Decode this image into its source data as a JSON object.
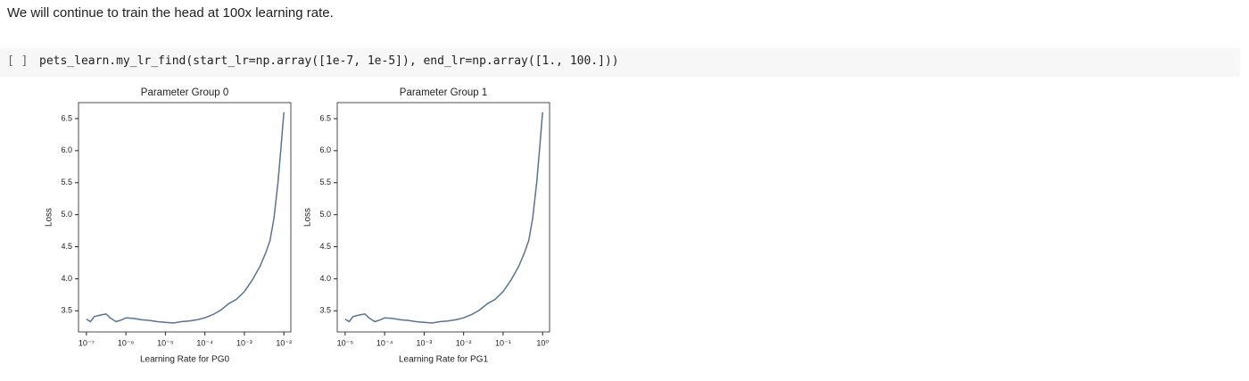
{
  "intro": "We will continue to train the head at 100x learning rate.",
  "cell": {
    "prompt": "[ ]",
    "code": "pets_learn.my_lr_find(start_lr=np.array([1e-7, 1e-5]), end_lr=np.array([1., 100.]))"
  },
  "chart_data": [
    {
      "type": "line",
      "title": "Parameter Group 0",
      "x_label": "Learning Rate for PG0",
      "y_label": "Loss",
      "xscale": "log",
      "color": "#5a7391",
      "x": [
        1e-07,
        1.259e-07,
        1.585e-07,
        2.512e-07,
        3.162e-07,
        3.981e-07,
        5.623e-07,
        7.943e-07,
        1e-06,
        1.585e-06,
        2.512e-06,
        3.981e-06,
        6.31e-06,
        1e-05,
        1.585e-05,
        2.512e-05,
        3.981e-05,
        6.31e-05,
        0.0001,
        0.0001585,
        0.0002512,
        0.0003981,
        0.000631,
        0.001,
        0.001585,
        0.002512,
        0.003548,
        0.004467,
        0.005623,
        0.007079,
        0.008318,
        0.01
      ],
      "values": [
        3.37,
        3.33,
        3.41,
        3.44,
        3.45,
        3.39,
        3.33,
        3.36,
        3.39,
        3.38,
        3.36,
        3.35,
        3.33,
        3.32,
        3.31,
        3.33,
        3.34,
        3.36,
        3.39,
        3.44,
        3.51,
        3.61,
        3.68,
        3.8,
        3.98,
        4.2,
        4.42,
        4.6,
        4.95,
        5.5,
        6.0,
        6.6
      ],
      "xlim": [
        6.3e-08,
        0.015
      ],
      "ylim": [
        3.17,
        6.75
      ],
      "xticks": [
        {
          "value": 1e-07,
          "label": "10⁻⁷"
        },
        {
          "value": 1e-06,
          "label": "10⁻⁶"
        },
        {
          "value": 1e-05,
          "label": "10⁻⁵"
        },
        {
          "value": 0.0001,
          "label": "10⁻⁴"
        },
        {
          "value": 0.001,
          "label": "10⁻³"
        },
        {
          "value": 0.01,
          "label": "10⁻²"
        }
      ],
      "yticks": [
        3.5,
        {
          "value": 4,
          "label": "4.0"
        },
        4.5,
        {
          "value": 5,
          "label": "5.0"
        },
        5.5,
        {
          "value": 6,
          "label": "6.0"
        },
        6.5
      ]
    },
    {
      "type": "line",
      "title": "Parameter Group 1",
      "x_label": "Learning Rate for PG1",
      "y_label": "Loss",
      "xscale": "log",
      "color": "#5a7391",
      "x": [
        1e-05,
        1.259e-05,
        1.585e-05,
        2.512e-05,
        3.162e-05,
        3.981e-05,
        5.623e-05,
        7.943e-05,
        0.0001,
        0.0001585,
        0.0002512,
        0.0003981,
        0.000631,
        0.001,
        0.001585,
        0.002512,
        0.003981,
        0.00631,
        0.01,
        0.01585,
        0.02512,
        0.03981,
        0.0631,
        0.1,
        0.1585,
        0.2512,
        0.3548,
        0.4467,
        0.5623,
        0.7079,
        0.8318,
        1
      ],
      "values": [
        3.37,
        3.33,
        3.41,
        3.44,
        3.45,
        3.39,
        3.33,
        3.36,
        3.39,
        3.38,
        3.36,
        3.35,
        3.33,
        3.32,
        3.31,
        3.33,
        3.34,
        3.36,
        3.39,
        3.44,
        3.51,
        3.61,
        3.68,
        3.8,
        3.98,
        4.2,
        4.42,
        4.6,
        4.95,
        5.5,
        6.0,
        6.6
      ],
      "xlim": [
        6.3e-06,
        1.5
      ],
      "ylim": [
        3.17,
        6.75
      ],
      "xticks": [
        {
          "value": 1e-05,
          "label": "10⁻⁵"
        },
        {
          "value": 0.0001,
          "label": "10⁻⁴"
        },
        {
          "value": 0.001,
          "label": "10⁻³"
        },
        {
          "value": 0.01,
          "label": "10⁻²"
        },
        {
          "value": 0.1,
          "label": "10⁻¹"
        },
        {
          "value": 1,
          "label": "10⁰"
        }
      ],
      "yticks": [
        3.5,
        {
          "value": 4,
          "label": "4.0"
        },
        4.5,
        {
          "value": 5,
          "label": "5.0"
        },
        5.5,
        {
          "value": 6,
          "label": "6.0"
        },
        6.5
      ]
    }
  ]
}
